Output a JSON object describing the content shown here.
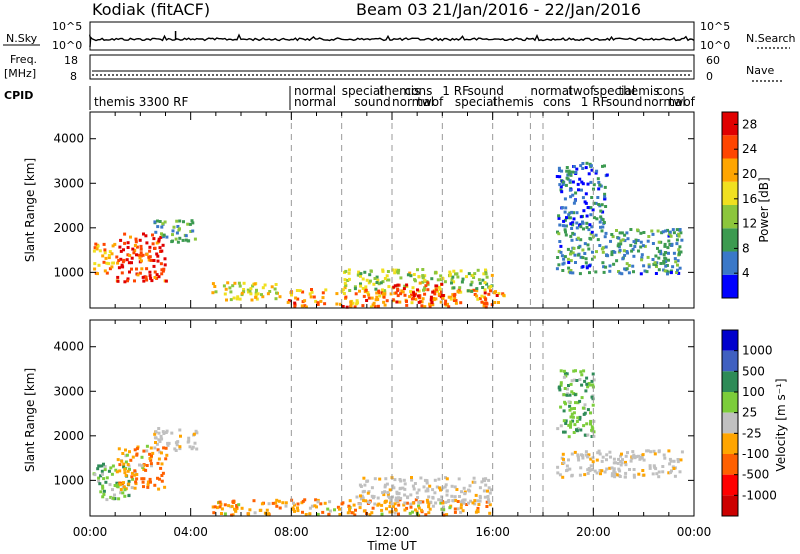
{
  "header": {
    "site": "Kodiak (fitACF)",
    "beam": "Beam 03",
    "dates": "21/Jan/2016 - 22/Jan/2016"
  },
  "strips": {
    "nsky_label": "N.Sky",
    "nsky_ticks": [
      "10^5",
      "10^0"
    ],
    "nsearch_label": "N.Search",
    "nsearch_ticks": [
      "10^5",
      "10^0"
    ],
    "freq_label": "Freq.",
    "freq_unit": "[MHz]",
    "freq_ticks": [
      "18",
      "8"
    ],
    "nave_label": "Nave",
    "nave_ticks": [
      "60",
      "0"
    ],
    "cpid_label": "CPID",
    "cpid_texts": [
      "themis 3300 RF",
      "normal",
      "normal"
    ]
  },
  "legend_colors": {
    "noise_line": "#000000",
    "ground_scatter": "#c0c0c0"
  },
  "chart_data": [
    {
      "type": "heatmap",
      "panel": "power",
      "xlabel": "",
      "ylabel": "Slant Range [km]",
      "xlim_hours": [
        0,
        24
      ],
      "ylim_km": [
        200,
        4600
      ],
      "yticks": [
        1000,
        2000,
        3000,
        4000
      ],
      "colorbar": {
        "label": "Power [dB]",
        "ticks": [
          4,
          8,
          12,
          16,
          20,
          24,
          28
        ],
        "range": [
          0,
          30
        ],
        "colors": [
          "#0000ff",
          "#3a78c8",
          "#3c9a50",
          "#8cc63c",
          "#f0e020",
          "#ffa500",
          "#ff4500",
          "#e00000"
        ]
      },
      "echo_regions": [
        {
          "t": [
            0.1,
            1.0
          ],
          "r": [
            1000,
            1700
          ],
          "level": 20
        },
        {
          "t": [
            1.0,
            3.0
          ],
          "r": [
            800,
            1900
          ],
          "level": 26
        },
        {
          "t": [
            2.5,
            4.2
          ],
          "r": [
            1700,
            2200
          ],
          "level": 10
        },
        {
          "t": [
            4.8,
            7.5
          ],
          "r": [
            400,
            800
          ],
          "level": 16
        },
        {
          "t": [
            7.8,
            16.5
          ],
          "r": [
            250,
            650
          ],
          "level": 22
        },
        {
          "t": [
            10.0,
            16.0
          ],
          "r": [
            600,
            1100
          ],
          "level": 14
        },
        {
          "t": [
            12.0,
            14.0
          ],
          "r": [
            350,
            800
          ],
          "level": 26
        },
        {
          "t": [
            18.5,
            23.5
          ],
          "r": [
            1000,
            2000
          ],
          "level": 8
        },
        {
          "t": [
            18.5,
            20.5
          ],
          "r": [
            2000,
            3500
          ],
          "level": 6
        }
      ]
    },
    {
      "type": "heatmap",
      "panel": "velocity",
      "xlabel": "Time UT",
      "ylabel": "Slant Range [km]",
      "xlim_hours": [
        0,
        24
      ],
      "ylim_km": [
        200,
        4600
      ],
      "yticks": [
        1000,
        2000,
        3000,
        4000
      ],
      "xtick_labels": [
        "00:00",
        "04:00",
        "08:00",
        "12:00",
        "16:00",
        "20:00",
        "00:00"
      ],
      "colorbar": {
        "label": "Velocity [m s⁻¹]",
        "ticks": [
          "1000",
          "500",
          "100",
          "25",
          "-25",
          "-100",
          "-500",
          "-1000"
        ],
        "colors": [
          "#0000cc",
          "#4060c0",
          "#2e8b57",
          "#7ccd3a",
          "#c0c0c0",
          "#ffa500",
          "#ff6000",
          "#ff0000",
          "#cc0000"
        ]
      },
      "echo_regions": [
        {
          "t": [
            0.1,
            1.5
          ],
          "r": [
            600,
            1400
          ],
          "kind": "toward"
        },
        {
          "t": [
            1.0,
            3.0
          ],
          "r": [
            800,
            1800
          ],
          "kind": "away"
        },
        {
          "t": [
            2.5,
            4.2
          ],
          "r": [
            1700,
            2200
          ],
          "kind": "ground"
        },
        {
          "t": [
            4.8,
            16.0
          ],
          "r": [
            250,
            600
          ],
          "kind": "away"
        },
        {
          "t": [
            10.5,
            16.0
          ],
          "r": [
            500,
            1100
          ],
          "kind": "ground"
        },
        {
          "t": [
            18.5,
            23.5
          ],
          "r": [
            1100,
            1700
          ],
          "kind": "ground"
        },
        {
          "t": [
            18.5,
            20.0
          ],
          "r": [
            2000,
            3500
          ],
          "kind": "toward"
        }
      ]
    }
  ]
}
